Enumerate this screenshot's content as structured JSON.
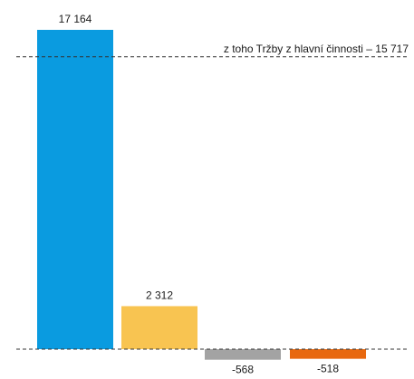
{
  "chart_data": {
    "type": "bar",
    "title": "",
    "xlabel": "",
    "ylabel": "",
    "ylim": [
      -700,
      18000
    ],
    "grid": false,
    "bars": [
      {
        "value": 17164,
        "label": "17 164",
        "color": "#0A9BE0"
      },
      {
        "value": 2312,
        "label": "2 312",
        "color": "#F8C451"
      },
      {
        "value": -568,
        "label": "-568",
        "color": "#A3A3A3"
      },
      {
        "value": -518,
        "label": "-518",
        "color": "#E8680F"
      }
    ],
    "reference_line": {
      "value": 15717,
      "label": "z toho Tržby z hlavní činnosti – 15 717"
    },
    "baseline": {
      "value": 0
    }
  }
}
